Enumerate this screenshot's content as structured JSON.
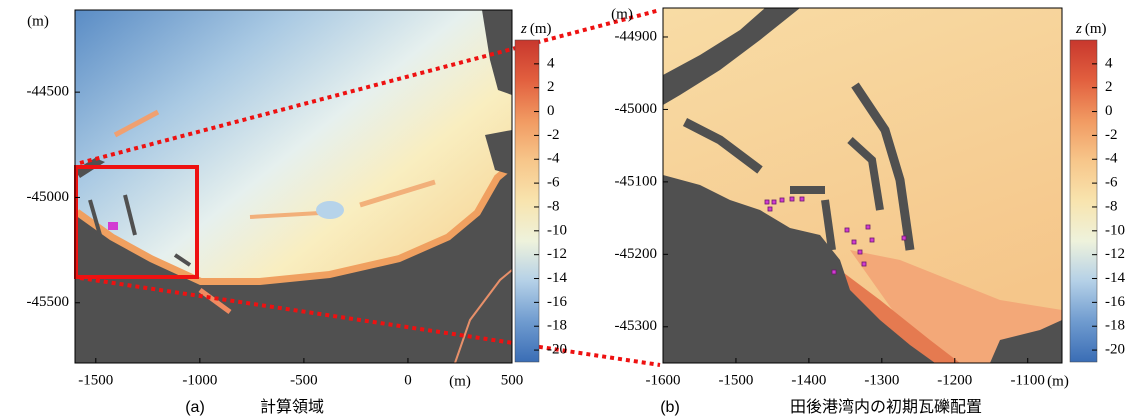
{
  "chart_data": [
    {
      "type": "heatmap",
      "caption_label": "(a)",
      "caption": "計算領域",
      "y_unit": "(m)",
      "x_unit": "(m)",
      "xlim": [
        -1600,
        500
      ],
      "xticks": [
        -1500,
        -1000,
        -500,
        0,
        500
      ],
      "ylim": [
        -45786,
        -44110
      ],
      "yticks": [
        -44500,
        -45000,
        -45500
      ],
      "colorbar": {
        "var": "z",
        "unit": "(m)",
        "lim": [
          -21,
          6
        ],
        "ticks": [
          4,
          2,
          0,
          -2,
          -4,
          -6,
          -8,
          -10,
          -12,
          -14,
          -16,
          -18,
          -20
        ],
        "colors": [
          "#3a6db5",
          "#6f9bcf",
          "#b4d0e7",
          "#eef2dc",
          "#f8e4ae",
          "#f7c68a",
          "#f19a62",
          "#e2603f",
          "#c8372d"
        ]
      }
    },
    {
      "type": "heatmap",
      "caption_label": "(b)",
      "caption": "田後港湾内の初期瓦礫配置",
      "y_unit": "(m)",
      "x_unit": "(m)",
      "xlim": [
        -1600,
        -1053
      ],
      "xticks": [
        -1600,
        -1500,
        -1400,
        -1300,
        -1200,
        -1100
      ],
      "ylim": [
        -45350,
        -44860
      ],
      "yticks": [
        -44900,
        -45000,
        -45100,
        -45200,
        -45300
      ],
      "colorbar": {
        "var": "z",
        "unit": "(m)",
        "lim": [
          -21,
          6
        ],
        "ticks": [
          4,
          2,
          0,
          -2,
          -4,
          -6,
          -8,
          -10,
          -12,
          -14,
          -16,
          -18,
          -20
        ],
        "colors": [
          "#3a6db5",
          "#6f9bcf",
          "#b4d0e7",
          "#eef2dc",
          "#f8e4ae",
          "#f7c68a",
          "#f19a62",
          "#e2603f",
          "#c8372d"
        ]
      }
    }
  ]
}
